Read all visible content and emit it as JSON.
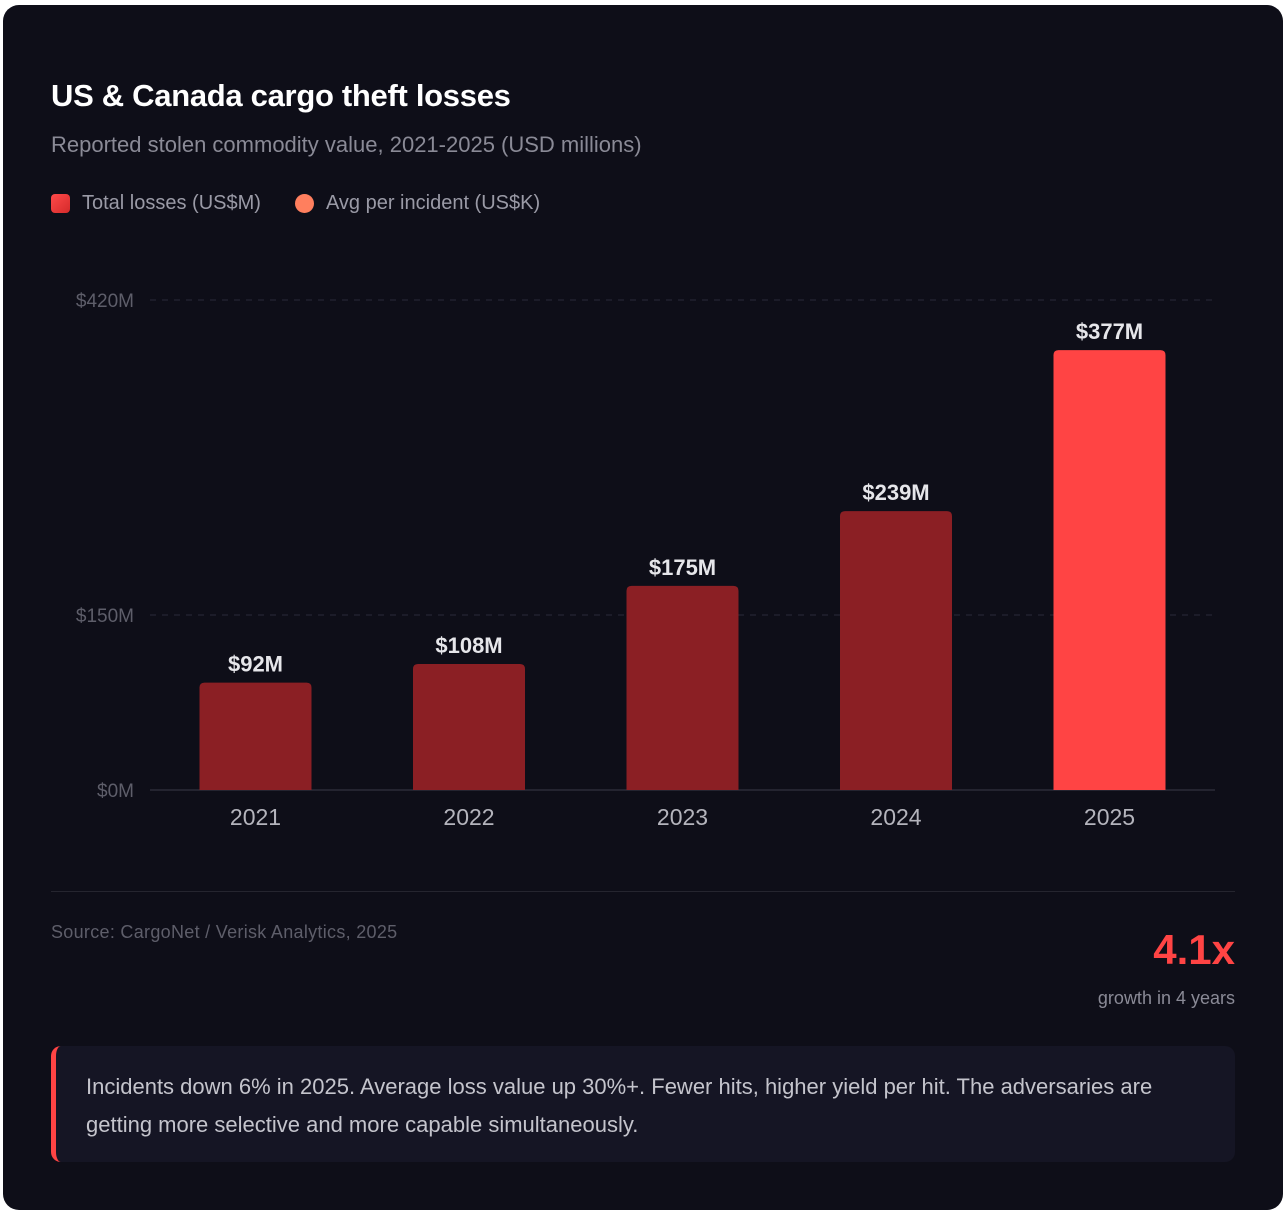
{
  "header": {
    "title": "US & Canada cargo theft losses",
    "subtitle": "Reported stolen commodity value, 2021-2025 (USD millions)"
  },
  "legend": [
    "Total losses (US$M)",
    "Avg per incident (US$K)"
  ],
  "chart_data": {
    "type": "bar",
    "title": "US & Canada cargo theft losses",
    "categories": [
      "2021",
      "2022",
      "2023",
      "2024",
      "2025"
    ],
    "values": [
      92,
      108,
      175,
      239,
      377
    ],
    "data_labels": [
      "$92M",
      "$108M",
      "$175M",
      "$239M",
      "$377M"
    ],
    "highlight_index": 4,
    "yticks": [
      {
        "value": 0,
        "label": "$0M"
      },
      {
        "value": 150,
        "label": "$150M"
      },
      {
        "value": 420,
        "label": "$420M"
      }
    ],
    "ylim": [
      0,
      420
    ],
    "grid": "dashed",
    "colors": {
      "bar": "#8b1f24",
      "highlight": "#ff4444"
    }
  },
  "footer": {
    "source": "Source: CargoNet / Verisk Analytics, 2025",
    "stat_value": "4.1x",
    "stat_label": "growth in 4 years"
  },
  "note": "Incidents down 6% in 2025. Average loss value up 30%+. Fewer hits, higher yield per hit. The adversaries are getting more selective and more capable simultaneously."
}
